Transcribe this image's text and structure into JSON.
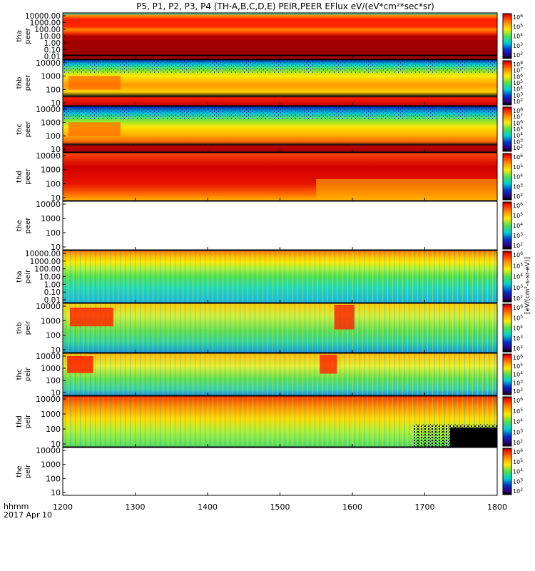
{
  "chart_data": {
    "type": "heatmap",
    "title": "P5, P1, P2, P3, P4 (TH-A,B,C,D,E) PEIR,PEER EFlux eV/(eV*cm²*sec*sr)",
    "x_label_line1": "hhmm",
    "x_label_line2": "2017 Apr 10",
    "x_range": [
      1200,
      1800
    ],
    "x_ticks": [
      "1200",
      "1300",
      "1400",
      "1500",
      "1600",
      "1700",
      "1800"
    ],
    "x_tick_values": [
      1200,
      1300,
      1400,
      1500,
      1600,
      1700,
      1800
    ],
    "colorbar_unit_label": "[eV/(cm²-s-sr-eV)]",
    "colorbar_tick_powers": [
      "2",
      "3",
      "4",
      "5",
      "6",
      "7",
      "8"
    ],
    "colors": {
      "dark_red": "#960000",
      "red": "#ff1e00",
      "orange": "#ff8c00",
      "yellow": "#ffeb00",
      "green": "#7fe43a",
      "cyan": "#00d2d2",
      "blue": "#0032c8",
      "black": "#000000"
    },
    "panels": [
      {
        "probe": "tha",
        "species": "peer",
        "yticks": [
          "10000.00",
          "1000.00",
          "100.00",
          "10.00",
          "1.00",
          "0.10",
          "0.01"
        ],
        "cbar_max": "6"
      },
      {
        "probe": "thb",
        "species": "peer",
        "yticks": [
          "10000",
          "1000",
          "100",
          "10"
        ],
        "cbar_max": "8"
      },
      {
        "probe": "thc",
        "species": "peer",
        "yticks": [
          "10000",
          "1000",
          "100",
          "10"
        ],
        "cbar_max": "8"
      },
      {
        "probe": "thd",
        "species": "peer",
        "yticks": [
          "10000",
          "1000",
          "100",
          "10"
        ],
        "cbar_max": "6"
      },
      {
        "probe": "the",
        "species": "peer",
        "yticks": [
          "10000",
          "1000",
          "100",
          "10"
        ],
        "cbar_max": "6"
      },
      {
        "probe": "tha",
        "species": "peir",
        "yticks": [
          "10000.00",
          "1000.00",
          "100.00",
          "10.00",
          "1.00",
          "0.10",
          "0.01"
        ],
        "cbar_max": "6"
      },
      {
        "probe": "thb",
        "species": "peir",
        "yticks": [
          "10000",
          "1000",
          "100",
          "10"
        ],
        "cbar_max": "6"
      },
      {
        "probe": "thc",
        "species": "peir",
        "yticks": [
          "10000",
          "1000",
          "100",
          "10"
        ],
        "cbar_max": "6"
      },
      {
        "probe": "thd",
        "species": "peir",
        "yticks": [
          "10000",
          "1000",
          "100",
          "10"
        ],
        "cbar_max": "6"
      },
      {
        "probe": "the",
        "species": "peir",
        "yticks": [
          "10000",
          "1000",
          "100",
          "10"
        ],
        "cbar_max": "6"
      }
    ]
  }
}
